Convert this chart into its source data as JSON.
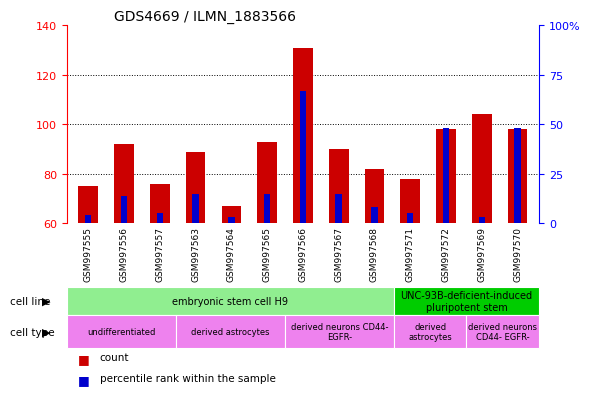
{
  "title": "GDS4669 / ILMN_1883566",
  "samples": [
    "GSM997555",
    "GSM997556",
    "GSM997557",
    "GSM997563",
    "GSM997564",
    "GSM997565",
    "GSM997566",
    "GSM997567",
    "GSM997568",
    "GSM997571",
    "GSM997572",
    "GSM997569",
    "GSM997570"
  ],
  "counts": [
    75,
    92,
    76,
    89,
    67,
    93,
    131,
    90,
    82,
    78,
    98,
    104,
    98
  ],
  "percentile_ranks": [
    4,
    14,
    5,
    15,
    3,
    15,
    67,
    15,
    8,
    5,
    48,
    3,
    48
  ],
  "ylim_left": [
    60,
    140
  ],
  "ylim_right": [
    0,
    100
  ],
  "yticks_left": [
    60,
    80,
    100,
    120,
    140
  ],
  "yticks_right": [
    0,
    25,
    50,
    75,
    100
  ],
  "ytick_labels_right": [
    "0",
    "25",
    "50",
    "75",
    "100%"
  ],
  "left_axis_color": "red",
  "right_axis_color": "blue",
  "bar_color_count": "#cc0000",
  "bar_color_percentile": "#0000cc",
  "cell_line_groups": [
    {
      "label": "embryonic stem cell H9",
      "start": 0,
      "end": 9,
      "color": "#90ee90"
    },
    {
      "label": "UNC-93B-deficient-induced\npluripotent stem",
      "start": 9,
      "end": 13,
      "color": "#00cc00"
    }
  ],
  "cell_type_groups": [
    {
      "label": "undifferentiated",
      "start": 0,
      "end": 3,
      "color": "#ee82ee"
    },
    {
      "label": "derived astrocytes",
      "start": 3,
      "end": 6,
      "color": "#ee82ee"
    },
    {
      "label": "derived neurons CD44-\nEGFR-",
      "start": 6,
      "end": 9,
      "color": "#ee82ee"
    },
    {
      "label": "derived\nastrocytes",
      "start": 9,
      "end": 11,
      "color": "#ee82ee"
    },
    {
      "label": "derived neurons\nCD44- EGFR-",
      "start": 11,
      "end": 13,
      "color": "#ee82ee"
    }
  ],
  "legend_items": [
    {
      "color": "#cc0000",
      "label": "count"
    },
    {
      "color": "#0000cc",
      "label": "percentile rank within the sample"
    }
  ],
  "bar_width": 0.55,
  "blue_bar_width": 0.18
}
